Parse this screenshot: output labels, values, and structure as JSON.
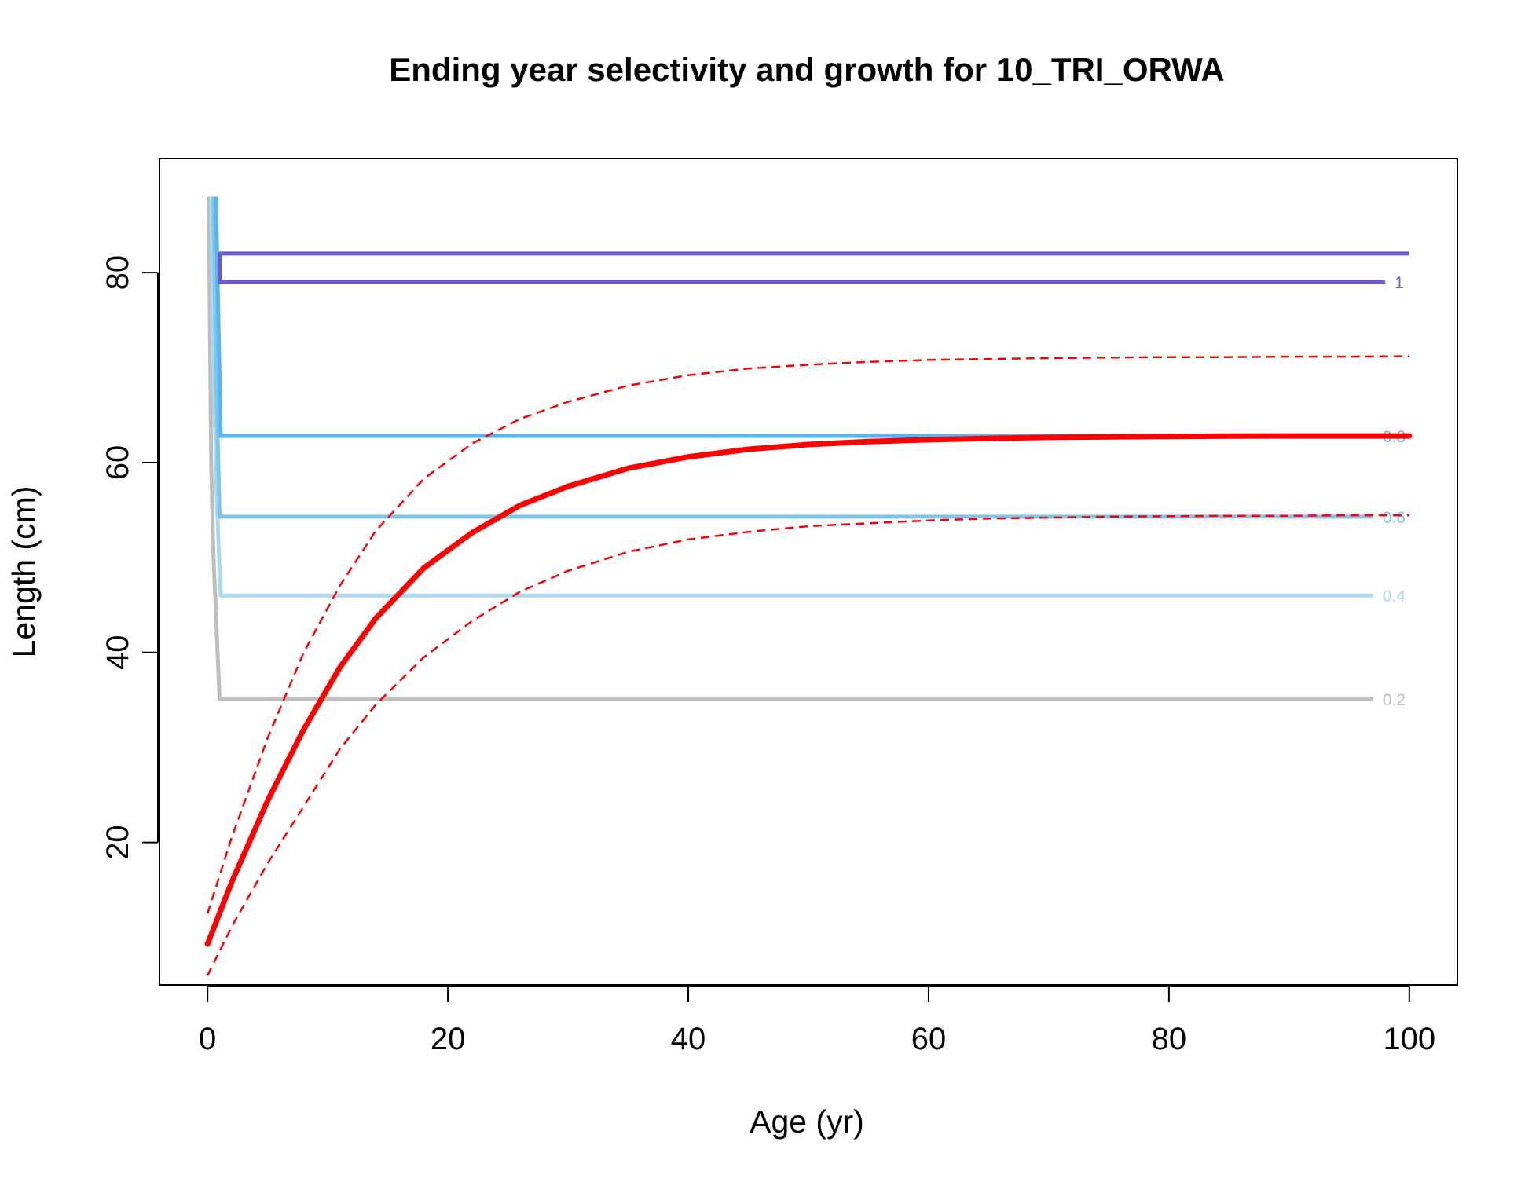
{
  "chart_data": {
    "type": "line",
    "title": "Ending year selectivity and growth for 10_TRI_ORWA",
    "xlabel": "Age (yr)",
    "ylabel": "Length (cm)",
    "xlim": [
      -4,
      104
    ],
    "ylim": [
      5,
      92
    ],
    "xticks": [
      0,
      20,
      40,
      60,
      80,
      100
    ],
    "yticks": [
      20,
      40,
      60,
      80
    ],
    "grid": false,
    "legend": "none",
    "colors": {
      "growth": "#ff0000",
      "c1": "#6a5acd",
      "c08": "#5ab4f0",
      "c06": "#7cc6ec",
      "c04": "#a9d9ea",
      "c02": "#bebebe"
    },
    "selectivity_contours": [
      {
        "level": "0.2",
        "color": "#bebebe",
        "points": [
          [
            0.1,
            88
          ],
          [
            0.3,
            60
          ],
          [
            0.5,
            50
          ],
          [
            1,
            35.1
          ],
          [
            97,
            35.1
          ]
        ],
        "label": "0.2"
      },
      {
        "level": "0.4",
        "color": "#a9d9ea",
        "points": [
          [
            0.3,
            88
          ],
          [
            0.5,
            70
          ],
          [
            0.8,
            55
          ],
          [
            1.1,
            46
          ],
          [
            97,
            46
          ]
        ],
        "label": "0.4"
      },
      {
        "level": "0.6",
        "color": "#7cc6ec",
        "points": [
          [
            0.5,
            88
          ],
          [
            0.7,
            70
          ],
          [
            1.0,
            54.3
          ],
          [
            97,
            54.3
          ]
        ],
        "label": "0.6"
      },
      {
        "level": "0.8",
        "color": "#5ab4f0",
        "points": [
          [
            0.7,
            88
          ],
          [
            0.9,
            75
          ],
          [
            1.1,
            62.8
          ],
          [
            97,
            62.8
          ]
        ],
        "label": "0.8"
      },
      {
        "level": "1",
        "color": "#6a5acd",
        "points": [
          [
            98,
            79
          ],
          [
            1.0,
            79
          ],
          [
            1.0,
            82
          ],
          [
            100,
            82
          ]
        ],
        "label": "1"
      }
    ],
    "growth": {
      "ages": [
        0,
        2,
        5,
        8,
        11,
        14,
        18,
        22,
        26,
        30,
        35,
        40,
        45,
        50,
        55,
        60,
        65,
        70,
        75,
        80,
        85,
        90,
        95,
        100
      ],
      "mean": [
        9.3,
        15.8,
        24.4,
        31.9,
        38.4,
        43.6,
        48.9,
        52.6,
        55.5,
        57.5,
        59.4,
        60.6,
        61.4,
        61.9,
        62.2,
        62.4,
        62.55,
        62.65,
        62.7,
        62.75,
        62.78,
        62.8,
        62.8,
        62.8
      ],
      "upper": [
        12.5,
        20.5,
        31.0,
        40.0,
        47.0,
        52.8,
        58.3,
        62.0,
        64.6,
        66.4,
        68.1,
        69.2,
        69.9,
        70.3,
        70.6,
        70.8,
        70.9,
        71.0,
        71.05,
        71.1,
        71.1,
        71.15,
        71.15,
        71.2
      ],
      "lower": [
        6.0,
        11.1,
        17.8,
        23.8,
        29.8,
        34.5,
        39.5,
        43.3,
        46.4,
        48.6,
        50.6,
        51.9,
        52.7,
        53.3,
        53.6,
        53.9,
        54.1,
        54.2,
        54.3,
        54.35,
        54.4,
        54.4,
        54.45,
        54.45
      ]
    }
  }
}
